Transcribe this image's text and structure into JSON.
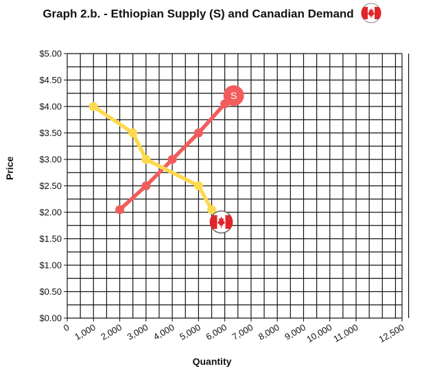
{
  "chart_data": {
    "type": "line",
    "title": "Graph 2.b. - Ethiopian Supply (S) and Canadian Demand",
    "xlabel": "Quantity",
    "ylabel": "Price",
    "x_tick_labels": [
      "0",
      "1,000",
      "2,000",
      "3,000",
      "4,000",
      "5,000",
      "6,000",
      "7,000",
      "8,000",
      "9,000",
      "10,000",
      "11,000",
      "12,500"
    ],
    "y_tick_labels": [
      "$0.00",
      "$0.50",
      "$1.00",
      "$1.50",
      "$2.00",
      "$2.50",
      "$3.00",
      "$3.50",
      "$4.00",
      "$4.50",
      "$5.00"
    ],
    "xlim": [
      0,
      12500
    ],
    "ylim": [
      0,
      5
    ],
    "grid": true,
    "series": [
      {
        "name": "S",
        "color": "#f25c5c",
        "x": [
          2000,
          3000,
          4000,
          5000,
          6000
        ],
        "y": [
          2.05,
          2.5,
          3.0,
          3.5,
          4.05
        ],
        "end_marker": "S"
      },
      {
        "color": "#fdd94e",
        "x": [
          1000,
          2500,
          3000,
          5000,
          5500
        ],
        "y": [
          4.0,
          3.5,
          3.0,
          2.5,
          2.05
        ],
        "end_marker": "canada-flag-icon"
      }
    ]
  }
}
